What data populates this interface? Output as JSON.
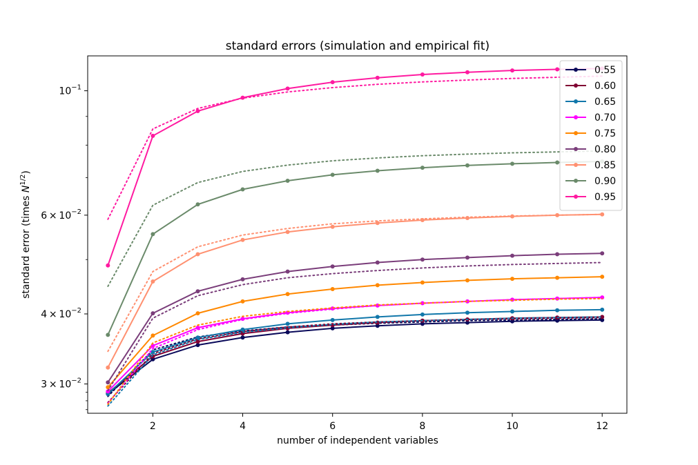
{
  "chart_data": {
    "type": "line",
    "title": "standard errors (simulation and empirical fit)",
    "xlabel": "number of independent variables",
    "ylabel": {
      "main": "standard error (times ",
      "var": "N",
      "sup": "1/2",
      "close": ")"
    },
    "yscale": "log",
    "xlim": [
      0.55,
      12.55
    ],
    "ylim": [
      0.0266,
      0.1154
    ],
    "x": [
      1,
      2,
      3,
      4,
      5,
      6,
      7,
      8,
      9,
      10,
      11,
      12
    ],
    "xticks": [
      2,
      4,
      6,
      8,
      10,
      12
    ],
    "xtick_labels": [
      "2",
      "4",
      "6",
      "8",
      "10",
      "12"
    ],
    "yticks": [
      {
        "value": 0.03,
        "mantissa": "3",
        "times": "×",
        "base": "10",
        "exp": "−2"
      },
      {
        "value": 0.04,
        "mantissa": "4",
        "times": "×",
        "base": "10",
        "exp": "−2"
      },
      {
        "value": 0.06,
        "mantissa": "6",
        "times": "×",
        "base": "10",
        "exp": "−2"
      },
      {
        "value": 0.1,
        "mantissa": "",
        "times": "",
        "base": "10",
        "exp": "−1"
      }
    ],
    "legend_position": "top-right",
    "series": [
      {
        "name": "0.55",
        "color": "#0a0a5a",
        "simulation": [
          0.0288,
          0.0332,
          0.0352,
          0.0363,
          0.0371,
          0.0377,
          0.0381,
          0.0384,
          0.0386,
          0.0388,
          0.0389,
          0.039
        ],
        "fit": [
          0.0285,
          0.0345,
          0.0364,
          0.0373,
          0.0379,
          0.0382,
          0.0385,
          0.0387,
          0.0389,
          0.039,
          0.0391,
          0.0392
        ]
      },
      {
        "name": "0.60",
        "color": "#800033",
        "simulation": [
          0.0289,
          0.0336,
          0.0357,
          0.0369,
          0.0377,
          0.0382,
          0.0386,
          0.0389,
          0.0391,
          0.0393,
          0.0394,
          0.0395
        ],
        "fit": [
          0.0278,
          0.034,
          0.0361,
          0.0372,
          0.0379,
          0.0384,
          0.0387,
          0.0389,
          0.0391,
          0.0392,
          0.0393,
          0.0394
        ]
      },
      {
        "name": "0.65",
        "color": "#1177aa",
        "simulation": [
          0.0288,
          0.0342,
          0.0363,
          0.0375,
          0.0384,
          0.039,
          0.0395,
          0.0399,
          0.0402,
          0.0404,
          0.0406,
          0.0407
        ],
        "fit": [
          0.0274,
          0.0338,
          0.036,
          0.0371,
          0.0378,
          0.0383,
          0.0387,
          0.0389,
          0.0391,
          0.0393,
          0.0394,
          0.0395
        ]
      },
      {
        "name": "0.70",
        "color": "#ff00ff",
        "simulation": [
          0.0291,
          0.0351,
          0.0378,
          0.0392,
          0.0402,
          0.0409,
          0.0414,
          0.0418,
          0.0421,
          0.0424,
          0.0426,
          0.0428
        ],
        "fit": [
          0.0277,
          0.0347,
          0.0375,
          0.0391,
          0.0401,
          0.0408,
          0.0414,
          0.0418,
          0.0421,
          0.0424,
          0.0426,
          0.0428
        ]
      },
      {
        "name": "0.75",
        "color": "#ff8800",
        "simulation": [
          0.0296,
          0.0366,
          0.0401,
          0.0421,
          0.0434,
          0.0443,
          0.045,
          0.0455,
          0.0459,
          0.0462,
          0.0464,
          0.0466
        ],
        "fit": [
          0.0276,
          0.0355,
          0.0382,
          0.0396,
          0.0404,
          0.041,
          0.0415,
          0.0418,
          0.0421,
          0.0423,
          0.0425,
          0.0426
        ]
      },
      {
        "name": "0.80",
        "color": "#7a3d7a",
        "simulation": [
          0.0302,
          0.0401,
          0.0439,
          0.0461,
          0.0476,
          0.0486,
          0.0494,
          0.05,
          0.0504,
          0.0508,
          0.0511,
          0.0513
        ],
        "fit": [
          0.0292,
          0.0393,
          0.0431,
          0.0451,
          0.0464,
          0.0472,
          0.0478,
          0.0483,
          0.0487,
          0.049,
          0.0492,
          0.0494
        ]
      },
      {
        "name": "0.85",
        "color": "#ff9070",
        "simulation": [
          0.0321,
          0.0457,
          0.0511,
          0.0542,
          0.056,
          0.0572,
          0.0581,
          0.0588,
          0.0593,
          0.0597,
          0.06,
          0.0602
        ],
        "fit": [
          0.0343,
          0.0476,
          0.0527,
          0.0553,
          0.0568,
          0.0579,
          0.0586,
          0.0591,
          0.0595,
          0.0598,
          0.06,
          0.0602
        ]
      },
      {
        "name": "0.90",
        "color": "#6a8a6a",
        "simulation": [
          0.0367,
          0.0555,
          0.0627,
          0.0667,
          0.0691,
          0.0708,
          0.072,
          0.0729,
          0.0736,
          0.0741,
          0.0745,
          0.0748
        ],
        "fit": [
          0.0448,
          0.0625,
          0.0686,
          0.0718,
          0.0737,
          0.075,
          0.0759,
          0.0766,
          0.0771,
          0.0775,
          0.0778,
          0.0781
        ]
      },
      {
        "name": "0.95",
        "color": "#ff1aa0",
        "simulation": [
          0.0488,
          0.0831,
          0.092,
          0.0972,
          0.1009,
          0.1036,
          0.1055,
          0.1069,
          0.1079,
          0.1087,
          0.1092,
          0.1096
        ],
        "fit": [
          0.059,
          0.0855,
          0.093,
          0.097,
          0.0995,
          0.1013,
          0.1027,
          0.1037,
          0.1045,
          0.1052,
          0.1057,
          0.1062
        ]
      }
    ]
  }
}
